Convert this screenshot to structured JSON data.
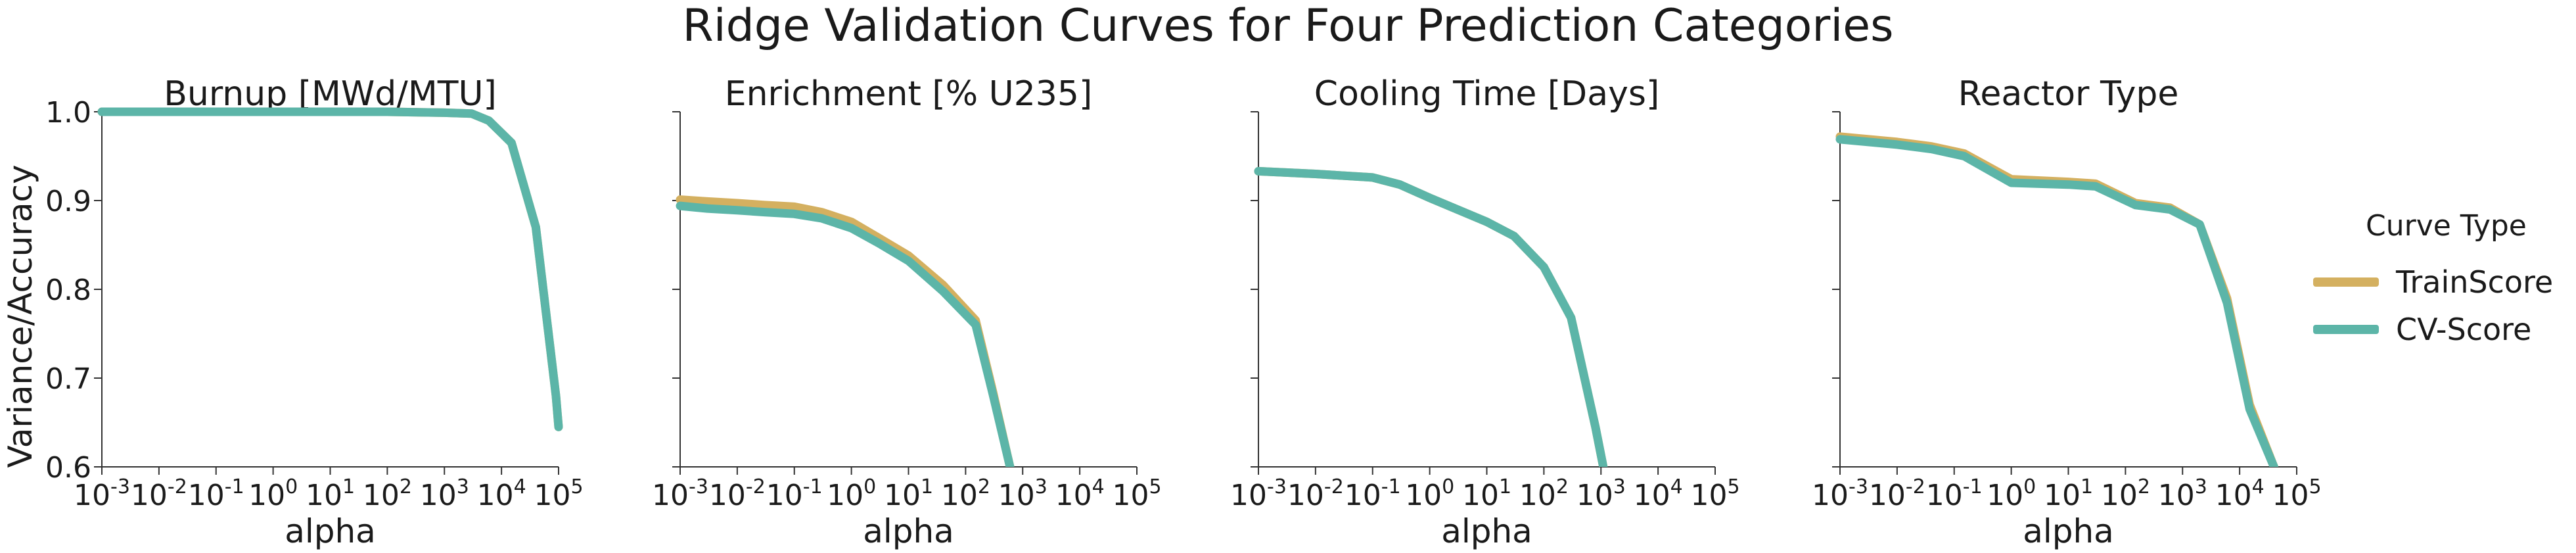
{
  "figure": {
    "title": "Ridge Validation Curves for Four Prediction Categories",
    "ylabel": "Variance/Accuracy",
    "legend_title": "Curve Type"
  },
  "colors": {
    "train": "#d4b060",
    "cv": "#5cb5a8",
    "axis": "#333333",
    "text": "#1a1a1a"
  },
  "legend": [
    {
      "name": "TrainScore",
      "color": "#d4b060"
    },
    {
      "name": "CV-Score",
      "color": "#5cb5a8"
    }
  ],
  "chart_data": [
    {
      "type": "line",
      "title": "Burnup [MWd/MTU]",
      "xlabel": "alpha",
      "ylabel": "Variance/Accuracy",
      "xscale": "log",
      "xlim": [
        0.001,
        100000
      ],
      "ylim": [
        0.6,
        1.0
      ],
      "yticks": [
        "0.6",
        "0.7",
        "0.8",
        "0.9",
        "1.0"
      ],
      "series": [
        {
          "name": "TrainScore",
          "x": [
            0.001,
            0.01,
            0.1,
            1,
            10,
            100,
            1000,
            3000,
            6000,
            15000,
            40000,
            90000,
            100000
          ],
          "y": [
            1.0,
            1.0,
            1.0,
            1.0,
            1.0,
            1.0,
            0.999,
            0.998,
            0.99,
            0.965,
            0.87,
            0.68,
            0.645
          ]
        },
        {
          "name": "CV-Score",
          "x": [
            0.001,
            0.01,
            0.1,
            1,
            10,
            100,
            1000,
            3000,
            6000,
            15000,
            40000,
            90000,
            100000
          ],
          "y": [
            1.0,
            1.0,
            1.0,
            1.0,
            1.0,
            1.0,
            0.999,
            0.998,
            0.99,
            0.965,
            0.87,
            0.68,
            0.645
          ]
        }
      ]
    },
    {
      "type": "line",
      "title": "Enrichment [% U235]",
      "xlabel": "alpha",
      "xscale": "log",
      "xlim": [
        0.001,
        100000
      ],
      "ylim": [
        0.6,
        1.0
      ],
      "series": [
        {
          "name": "TrainScore",
          "x": [
            0.001,
            0.003,
            0.01,
            0.03,
            0.1,
            0.3,
            1,
            3,
            10,
            40,
            150,
            300,
            600
          ],
          "y": [
            0.901,
            0.899,
            0.897,
            0.895,
            0.893,
            0.887,
            0.876,
            0.858,
            0.838,
            0.805,
            0.765,
            0.685,
            0.6
          ]
        },
        {
          "name": "CV-Score",
          "x": [
            0.001,
            0.003,
            0.01,
            0.03,
            0.1,
            0.3,
            1,
            3,
            10,
            40,
            150,
            300,
            600
          ],
          "y": [
            0.894,
            0.891,
            0.889,
            0.887,
            0.885,
            0.88,
            0.869,
            0.852,
            0.832,
            0.798,
            0.76,
            0.682,
            0.6
          ]
        }
      ]
    },
    {
      "type": "line",
      "title": "Cooling Time [Days]",
      "xlabel": "alpha",
      "xscale": "log",
      "xlim": [
        0.001,
        100000
      ],
      "ylim": [
        0.6,
        1.0
      ],
      "series": [
        {
          "name": "TrainScore",
          "x": [
            0.001,
            0.01,
            0.1,
            0.3,
            1,
            10,
            30,
            100,
            300,
            800,
            1100
          ],
          "y": [
            0.933,
            0.93,
            0.926,
            0.918,
            0.903,
            0.876,
            0.86,
            0.825,
            0.768,
            0.645,
            0.6
          ]
        },
        {
          "name": "CV-Score",
          "x": [
            0.001,
            0.01,
            0.1,
            0.3,
            1,
            10,
            30,
            100,
            300,
            800,
            1100
          ],
          "y": [
            0.933,
            0.93,
            0.926,
            0.918,
            0.903,
            0.876,
            0.86,
            0.825,
            0.768,
            0.645,
            0.6
          ]
        }
      ]
    },
    {
      "type": "line",
      "title": "Reactor Type",
      "xlabel": "alpha",
      "xscale": "log",
      "xlim": [
        0.001,
        100000
      ],
      "ylim": [
        0.6,
        1.0
      ],
      "series": [
        {
          "name": "TrainScore",
          "x": [
            0.001,
            0.01,
            0.04,
            0.15,
            1,
            10,
            30,
            150,
            600,
            2000,
            6000,
            15000,
            40000
          ],
          "y": [
            0.972,
            0.966,
            0.961,
            0.953,
            0.924,
            0.921,
            0.919,
            0.897,
            0.892,
            0.873,
            0.79,
            0.67,
            0.6
          ]
        },
        {
          "name": "CV-Score",
          "x": [
            0.001,
            0.01,
            0.04,
            0.15,
            1,
            10,
            30,
            150,
            600,
            2000,
            6000,
            15000,
            40000
          ],
          "y": [
            0.969,
            0.963,
            0.958,
            0.95,
            0.92,
            0.918,
            0.916,
            0.895,
            0.89,
            0.873,
            0.785,
            0.665,
            0.6
          ]
        }
      ]
    }
  ]
}
